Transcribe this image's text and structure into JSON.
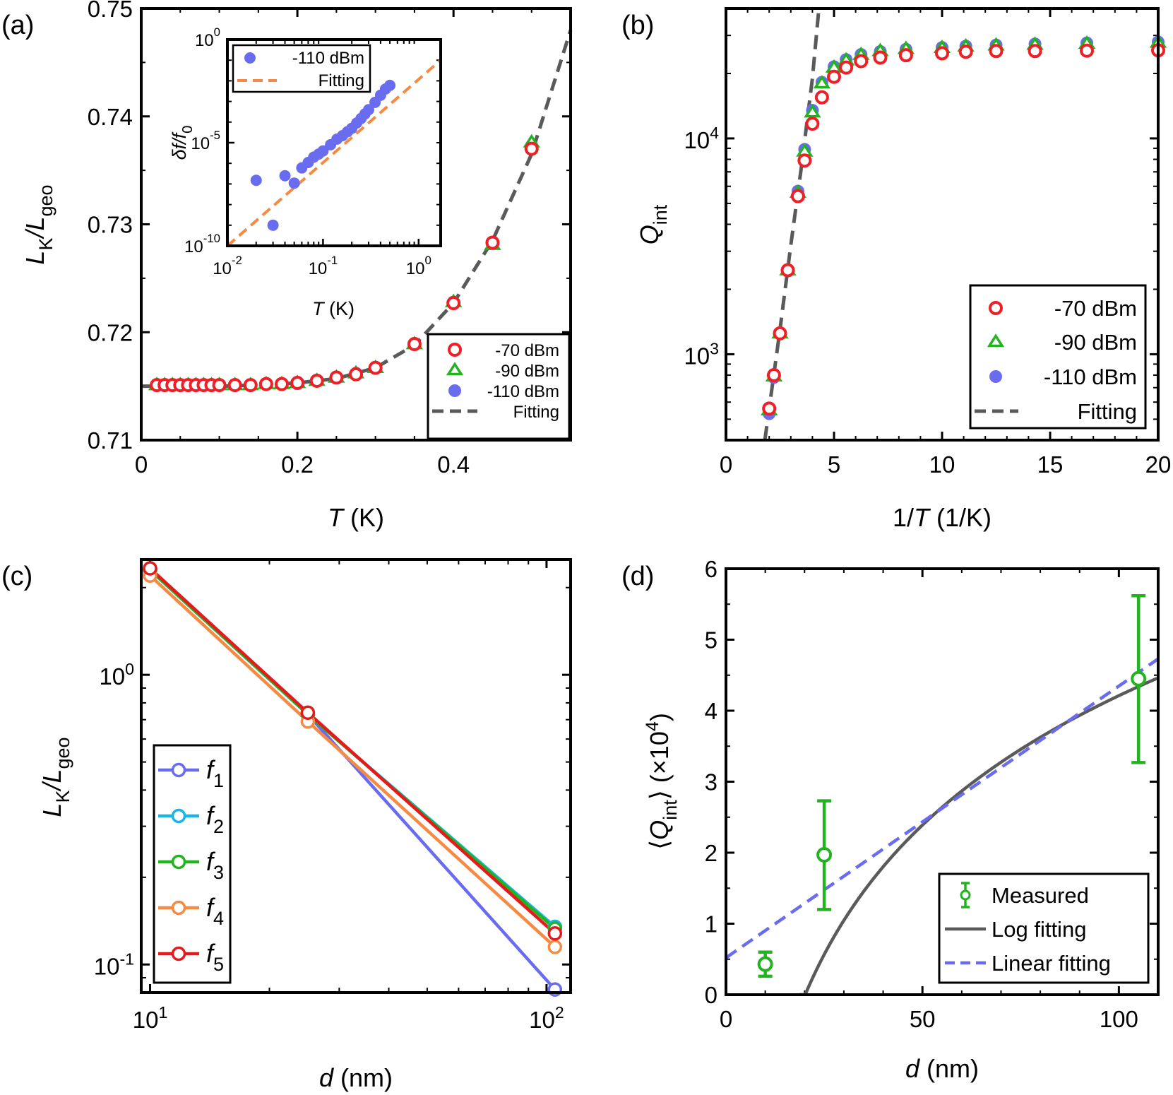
{
  "colors": {
    "red": "#f01e26",
    "green": "#22b41e",
    "blue": "#6a6cf0",
    "gray": "#5a5a5a",
    "orange": "#f58a45",
    "cyan": "#1bb4ea",
    "darkred": "#e41a1c"
  },
  "chart_data": [
    {
      "id": "a",
      "panel_label": "(a)",
      "type": "scatter",
      "x_title": "T",
      "x_unit": "(K)",
      "y_title_main": "L",
      "y_title_sub1": "K",
      "y_title_sep": "/L",
      "y_title_sub2": "geo",
      "xlim": [
        0,
        0.55
      ],
      "ylim": [
        0.71,
        0.75
      ],
      "xticks": [
        0,
        0.2,
        0.4
      ],
      "xtick_labels": [
        "0",
        "0.2",
        "0.4"
      ],
      "yticks": [
        0.71,
        0.72,
        0.73,
        0.74,
        0.75
      ],
      "ytick_labels": [
        "0.71",
        "0.72",
        "0.73",
        "0.74",
        "0.75"
      ],
      "legend": [
        "-70 dBm",
        "-90 dBm",
        "-110 dBm",
        "Fitting"
      ],
      "legend_position": "bottom-right",
      "x": [
        0.02,
        0.03,
        0.04,
        0.05,
        0.06,
        0.07,
        0.08,
        0.09,
        0.1,
        0.12,
        0.14,
        0.16,
        0.18,
        0.2,
        0.225,
        0.25,
        0.275,
        0.3,
        0.35,
        0.4,
        0.45,
        0.5
      ],
      "series": [
        {
          "name": "-70 dBm",
          "marker": "open-circle",
          "color": "#f01e26",
          "values": [
            0.7151,
            0.7151,
            0.7151,
            0.7151,
            0.7151,
            0.7151,
            0.7151,
            0.7151,
            0.7151,
            0.7151,
            0.7151,
            0.7152,
            0.7152,
            0.7153,
            0.7155,
            0.7158,
            0.7161,
            0.7167,
            0.7189,
            0.7227,
            0.7283,
            0.737
          ]
        },
        {
          "name": "-90 dBm",
          "marker": "open-triangle",
          "color": "#22b41e",
          "values": [
            0.7151,
            0.7151,
            0.7151,
            0.7151,
            0.7151,
            0.7151,
            0.7151,
            0.7151,
            0.7151,
            0.7151,
            0.7151,
            0.7152,
            0.7152,
            0.7153,
            0.7155,
            0.7158,
            0.7162,
            0.7167,
            0.7189,
            0.7228,
            0.7281,
            0.7376
          ]
        },
        {
          "name": "-110 dBm",
          "marker": "filled-circle",
          "color": "#6a6cf0",
          "values": [
            0.7151,
            0.7151,
            0.7151,
            0.7151,
            0.7151,
            0.7151,
            0.7151,
            0.7151,
            0.7151,
            0.7151,
            0.7151,
            0.7152,
            0.7152,
            0.7153,
            0.7155,
            0.7158,
            0.7162,
            0.7167,
            0.7189,
            0.7228,
            0.7283,
            0.7373
          ]
        }
      ],
      "fit": {
        "name": "Fitting",
        "color": "#5a5a5a",
        "x": [
          0.0,
          0.05,
          0.1,
          0.15,
          0.2,
          0.25,
          0.3,
          0.35,
          0.4,
          0.45,
          0.5,
          0.55
        ],
        "y": [
          0.715,
          0.715,
          0.715,
          0.7151,
          0.7153,
          0.7157,
          0.7167,
          0.7188,
          0.7227,
          0.7285,
          0.7365,
          0.748
        ]
      },
      "inset": {
        "type": "scatter",
        "x_title": "T",
        "x_unit": "(K)",
        "y_title": "δf/f",
        "y_title_sub": "0",
        "xscale": "log",
        "yscale": "log",
        "xlim": [
          0.01,
          1.7
        ],
        "ylim": [
          1e-10,
          1
        ],
        "xticks": [
          0.01,
          0.1,
          1
        ],
        "xtick_base": [
          "10",
          "10",
          "10"
        ],
        "xtick_exp": [
          "-2",
          "-1",
          "0"
        ],
        "yticks": [
          1e-10,
          1e-05,
          1
        ],
        "ytick_base": [
          "10",
          "10",
          "10"
        ],
        "ytick_exp": [
          "-10",
          "-5",
          "0"
        ],
        "legend": [
          "-110 dBm",
          "Fitting"
        ],
        "legend_position": "top-left",
        "points": {
          "name": "-110 dBm",
          "color": "#6a6cf0",
          "x": [
            0.02,
            0.03,
            0.04,
            0.05,
            0.06,
            0.07,
            0.08,
            0.09,
            0.1,
            0.12,
            0.14,
            0.16,
            0.18,
            0.2,
            0.225,
            0.25,
            0.275,
            0.3,
            0.35,
            0.4,
            0.45,
            0.5
          ],
          "y": [
            1.5e-07,
            1e-09,
            2.5e-07,
            1.1e-07,
            6e-07,
            1.1e-06,
            2e-06,
            2.8e-06,
            4e-06,
            8e-06,
            1.5e-05,
            2.2e-05,
            3.4e-05,
            5e-05,
            9e-05,
            0.00015,
            0.00025,
            0.0004,
            0.0009,
            0.002,
            0.004,
            0.006
          ]
        },
        "fit": {
          "name": "Fitting",
          "color": "#f58a45",
          "x": [
            0.01,
            1.7
          ],
          "y": [
            1e-10,
            0.1
          ]
        }
      }
    },
    {
      "id": "b",
      "panel_label": "(b)",
      "type": "scatter",
      "x_title_pre": "1/",
      "x_title": "T",
      "x_unit": "(1/K)",
      "y_title": "Q",
      "y_title_sub": "int",
      "xlim": [
        0,
        20
      ],
      "ylim": [
        400,
        40000
      ],
      "yscale": "log",
      "xticks": [
        0,
        5,
        10,
        15,
        20
      ],
      "xtick_labels": [
        "0",
        "5",
        "10",
        "15",
        "20"
      ],
      "yticks": [
        1000,
        10000
      ],
      "ytick_base": [
        "10",
        "10"
      ],
      "ytick_exp": [
        "3",
        "4"
      ],
      "legend": [
        "-70 dBm",
        "-90 dBm",
        "-110 dBm",
        "Fitting"
      ],
      "legend_position": "bottom-right",
      "x": [
        2.0,
        2.22,
        2.5,
        2.86,
        3.33,
        3.64,
        4.0,
        4.44,
        5.0,
        5.56,
        6.25,
        7.14,
        8.33,
        10.0,
        11.1,
        12.5,
        14.3,
        16.7,
        20.0
      ],
      "series": [
        {
          "name": "-70 dBm",
          "marker": "open-circle",
          "color": "#f01e26",
          "values": [
            560,
            800,
            1250,
            2450,
            5400,
            7900,
            11700,
            15500,
            19300,
            21300,
            22800,
            23700,
            24300,
            24800,
            25200,
            25400,
            25400,
            25500,
            25600
          ]
        },
        {
          "name": "-90 dBm",
          "marker": "open-triangle",
          "color": "#22b41e",
          "values": [
            550,
            790,
            1250,
            2450,
            5600,
            8700,
            13200,
            18000,
            21300,
            23000,
            24400,
            25400,
            26000,
            26300,
            26700,
            27000,
            27200,
            27500,
            27800
          ]
        },
        {
          "name": "-110 dBm",
          "marker": "filled-circle",
          "color": "#6a6cf0",
          "values": [
            530,
            780,
            1250,
            2450,
            5700,
            8900,
            13500,
            18200,
            21500,
            23200,
            24500,
            25300,
            25900,
            26400,
            26800,
            27100,
            27400,
            27700,
            28000
          ]
        }
      ],
      "fit": {
        "name": "Fitting",
        "color": "#5a5a5a",
        "x": [
          1.8,
          2.5,
          3.0,
          3.5,
          4.0,
          4.3
        ],
        "y": [
          400,
          1300,
          3200,
          7500,
          19000,
          40000
        ]
      }
    },
    {
      "id": "c",
      "panel_label": "(c)",
      "type": "line",
      "x_title": "d",
      "x_unit": "(nm)",
      "y_title_main": "L",
      "y_title_sub1": "K",
      "y_title_sep": "/L",
      "y_title_sub2": "geo",
      "xscale": "log",
      "yscale": "log",
      "xlim": [
        9.5,
        115
      ],
      "ylim": [
        0.08,
        2.5
      ],
      "xticks": [
        10,
        100
      ],
      "xtick_base": [
        "10",
        "10"
      ],
      "xtick_exp": [
        "1",
        "2"
      ],
      "yticks": [
        0.1,
        1
      ],
      "ytick_base": [
        "10",
        "10"
      ],
      "ytick_exp": [
        "-1",
        "0"
      ],
      "legend": [
        "f",
        "f",
        "f",
        "f",
        "f"
      ],
      "legend_sub": [
        "1",
        "2",
        "3",
        "4",
        "5"
      ],
      "legend_position": "bottom-left",
      "x": [
        10,
        25,
        105
      ],
      "series": [
        {
          "name": "f1",
          "color": "#6a6cf0",
          "values": [
            2.3,
            0.73,
            0.082
          ]
        },
        {
          "name": "f2",
          "color": "#1bb4ea",
          "values": [
            2.3,
            0.73,
            0.135
          ]
        },
        {
          "name": "f3",
          "color": "#22b41e",
          "values": [
            2.3,
            0.73,
            0.133
          ]
        },
        {
          "name": "f4",
          "color": "#f58a45",
          "values": [
            2.2,
            0.69,
            0.115
          ]
        },
        {
          "name": "f5",
          "color": "#e41a1c",
          "values": [
            2.33,
            0.74,
            0.128
          ]
        }
      ]
    },
    {
      "id": "d",
      "panel_label": "(d)",
      "type": "scatter",
      "x_title": "d",
      "x_unit": "(nm)",
      "y_title_open": "⟨",
      "y_title": "Q",
      "y_title_sub": "int",
      "y_title_close": "⟩",
      "y_title_unit_pre": "(×10",
      "y_title_unit_exp": "4",
      "y_title_unit_post": ")",
      "xlim": [
        0,
        110
      ],
      "ylim": [
        0,
        6
      ],
      "xticks": [
        0,
        50,
        100
      ],
      "xtick_labels": [
        "0",
        "50",
        "100"
      ],
      "yticks": [
        0,
        1,
        2,
        3,
        4,
        5,
        6
      ],
      "ytick_labels": [
        "0",
        "1",
        "2",
        "3",
        "4",
        "5",
        "6"
      ],
      "legend": [
        "Measured",
        "Log fitting",
        "Linear fitting"
      ],
      "legend_position": "bottom-right",
      "points": {
        "name": "Measured",
        "color": "#22b41e",
        "x": [
          10,
          25,
          105
        ],
        "y": [
          0.43,
          1.97,
          4.45
        ],
        "err_low": [
          0.17,
          0.77,
          1.18
        ],
        "err_high": [
          0.17,
          0.76,
          1.17
        ]
      },
      "log_fit": {
        "name": "Log fitting",
        "color": "#5a5a5a",
        "a": -7.9,
        "b": 2.63
      },
      "linear_fit": {
        "name": "Linear fitting",
        "color": "#6a6cf0",
        "x": [
          0,
          110
        ],
        "y": [
          0.52,
          4.73
        ]
      }
    }
  ]
}
